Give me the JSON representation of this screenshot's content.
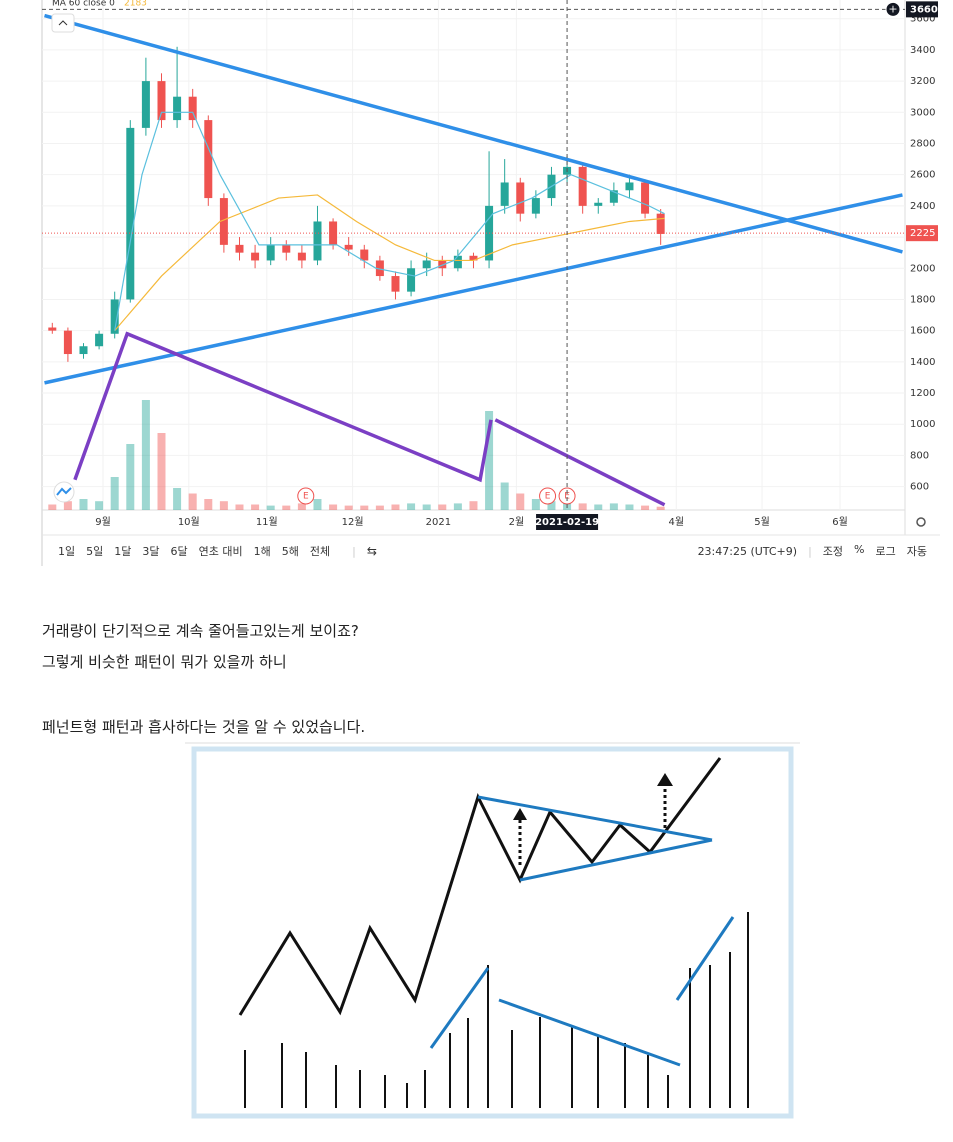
{
  "chart_data": {
    "type": "candlestick",
    "indicator_label": "MA 60 close 0",
    "indicator_value": 2183,
    "xlim": [
      0,
      221.5
    ],
    "ylim": [
      450,
      3720
    ],
    "yticks": [
      600,
      800,
      1000,
      1200,
      1400,
      1600,
      1800,
      2000,
      2200,
      2400,
      2600,
      2800,
      3000,
      3200,
      3400,
      3600
    ],
    "xticks": [
      {
        "value": 15,
        "label": "9월"
      },
      {
        "value": 37,
        "label": "10월"
      },
      {
        "value": 57,
        "label": "11월"
      },
      {
        "value": 79,
        "label": "12월"
      },
      {
        "value": 101,
        "label": "2021"
      },
      {
        "value": 121,
        "label": "2월"
      },
      {
        "value": 162,
        "label": "4월"
      },
      {
        "value": 184,
        "label": "5월"
      },
      {
        "value": 204,
        "label": "6월"
      }
    ],
    "crosshair": {
      "x": {
        "value": 134,
        "label": "2021-02-19"
      },
      "y": 3660
    },
    "last_price": 2225,
    "up_color": "#26a69a",
    "down_color": "#ef5350",
    "candles": {
      "x": [
        2,
        6,
        10,
        14,
        18,
        22,
        26,
        30,
        34,
        38,
        42,
        46,
        50,
        54,
        58,
        62,
        66,
        70,
        74,
        78,
        82,
        86,
        90,
        94,
        98,
        102,
        106,
        110,
        114,
        118,
        122,
        126,
        130,
        134,
        138,
        142,
        146,
        150,
        154,
        158
      ],
      "open": [
        1620,
        1600,
        1450,
        1500,
        1580,
        1800,
        2900,
        3200,
        2950,
        3100,
        2950,
        2450,
        2150,
        2100,
        2050,
        2150,
        2100,
        2050,
        2300,
        2150,
        2120,
        2050,
        1950,
        1850,
        2000,
        2050,
        2000,
        2080,
        2050,
        2400,
        2550,
        2350,
        2450,
        2600,
        2650,
        2400,
        2420,
        2500,
        2550,
        2350
      ],
      "high": [
        1650,
        1620,
        1520,
        1600,
        1850,
        2950,
        3350,
        3250,
        3420,
        3150,
        2980,
        2480,
        2200,
        2150,
        2200,
        2180,
        2150,
        2400,
        2320,
        2200,
        2150,
        2080,
        1980,
        2050,
        2100,
        2080,
        2120,
        2100,
        2750,
        2700,
        2580,
        2500,
        2650,
        2720,
        2680,
        2450,
        2550,
        2600,
        2570,
        2380
      ],
      "low": [
        1580,
        1400,
        1420,
        1480,
        1550,
        1780,
        2850,
        2900,
        2900,
        2900,
        2400,
        2100,
        2050,
        2000,
        2020,
        2050,
        2000,
        2020,
        2120,
        2080,
        2000,
        1920,
        1800,
        1820,
        1950,
        1950,
        1980,
        2000,
        2000,
        2350,
        2300,
        2320,
        2400,
        2550,
        2350,
        2350,
        2400,
        2450,
        2320,
        2150
      ],
      "close": [
        1600,
        1450,
        1500,
        1580,
        1800,
        2900,
        3200,
        2950,
        3100,
        2950,
        2450,
        2150,
        2100,
        2050,
        2150,
        2100,
        2050,
        2300,
        2150,
        2120,
        2050,
        1950,
        1850,
        2000,
        2050,
        2000,
        2080,
        2050,
        2400,
        2550,
        2350,
        2450,
        2600,
        2650,
        2400,
        2420,
        2500,
        2550,
        2350,
        2220
      ]
    },
    "volume": [
      5,
      8,
      10,
      8,
      30,
      60,
      100,
      70,
      20,
      15,
      10,
      8,
      5,
      5,
      4,
      4,
      6,
      10,
      5,
      4,
      4,
      4,
      5,
      6,
      5,
      5,
      6,
      8,
      90,
      25,
      15,
      10,
      8,
      12,
      6,
      5,
      6,
      5,
      4,
      3
    ],
    "ma_series": [
      {
        "color": "#f5b93a",
        "x": [
          18,
          30,
          45,
          60,
          70,
          80,
          90,
          100,
          110,
          120,
          130,
          140,
          150,
          159
        ],
        "values": [
          1600,
          1950,
          2300,
          2450,
          2470,
          2300,
          2150,
          2050,
          2050,
          2150,
          2200,
          2250,
          2300,
          2320
        ]
      },
      {
        "color": "#5bc0de",
        "x": [
          18,
          25,
          30,
          38,
          45,
          55,
          65,
          75,
          85,
          95,
          105,
          115,
          125,
          135,
          145,
          155,
          159
        ],
        "values": [
          1600,
          2600,
          3000,
          3000,
          2600,
          2150,
          2150,
          2150,
          2000,
          1950,
          2050,
          2350,
          2450,
          2600,
          2500,
          2400,
          2350
        ]
      }
    ],
    "trendlines": [
      {
        "color": "#2f8fe8",
        "x": [
          0,
          220
        ],
        "values": [
          3620,
          2105
        ]
      },
      {
        "color": "#2f8fe8",
        "x": [
          0,
          220
        ],
        "values": [
          1265,
          2470
        ]
      },
      {
        "color": "#7b3fc4",
        "x": [
          7.8,
          21.2,
          111.7,
          114.5
        ],
        "values": [
          644,
          1580,
          644,
          1028
        ]
      },
      {
        "color": "#7b3fc4",
        "x": [
          115.6,
          159
        ],
        "values": [
          1028,
          483
        ]
      }
    ],
    "earnings": {
      "label": "E",
      "x": [
        67,
        129,
        134
      ]
    }
  },
  "toolbar": {
    "ranges": [
      "1일",
      "5일",
      "1달",
      "3달",
      "6달",
      "연초 대비",
      "1해",
      "5해",
      "전체"
    ],
    "time": "23:47:25 (UTC+9)",
    "options": [
      "조정",
      "%",
      "로그",
      "자동"
    ]
  },
  "paragraphs": [
    "거래량이 단기적으로 계속 줄어들고있는게 보이죠?",
    "그렇게 비슷한 패턴이 뭐가 있을까 하니",
    "페넌트형 패턴과 흡사하다는 것을 알 수 있었습니다."
  ]
}
